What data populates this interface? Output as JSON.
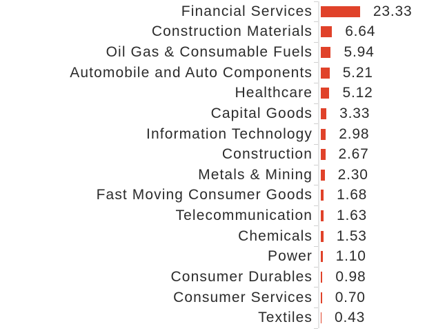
{
  "chart_data": {
    "type": "bar",
    "orientation": "horizontal",
    "title": "",
    "xlabel": "",
    "ylabel": "",
    "grid": false,
    "legend": false,
    "value_labels_shown": true,
    "value_decimals": 2,
    "categories": [
      "Financial Services",
      "Construction Materials",
      "Oil Gas & Consumable Fuels",
      "Automobile and Auto Components",
      "Healthcare",
      "Capital Goods",
      "Information Technology",
      "Construction",
      "Metals & Mining",
      "Fast Moving Consumer Goods",
      "Telecommunication",
      "Chemicals",
      "Power",
      "Consumer Durables",
      "Consumer Services",
      "Textiles"
    ],
    "values": [
      23.33,
      6.64,
      5.94,
      5.21,
      5.12,
      3.33,
      2.98,
      2.67,
      2.3,
      1.68,
      1.63,
      1.53,
      1.1,
      0.98,
      0.7,
      0.43
    ],
    "value_labels": [
      "23.33",
      "6.64",
      "5.94",
      "5.21",
      "5.12",
      "3.33",
      "2.98",
      "2.67",
      "2.30",
      "1.68",
      "1.63",
      "1.53",
      "1.10",
      "0.98",
      "0.70",
      "0.43"
    ],
    "colors": {
      "bar_color": "#e0422a",
      "text_color": "#2b2b2b",
      "axis_line_color": "#e4e4e4",
      "tick_color": "#cfcfcf",
      "background_color": "#ffffff"
    }
  }
}
